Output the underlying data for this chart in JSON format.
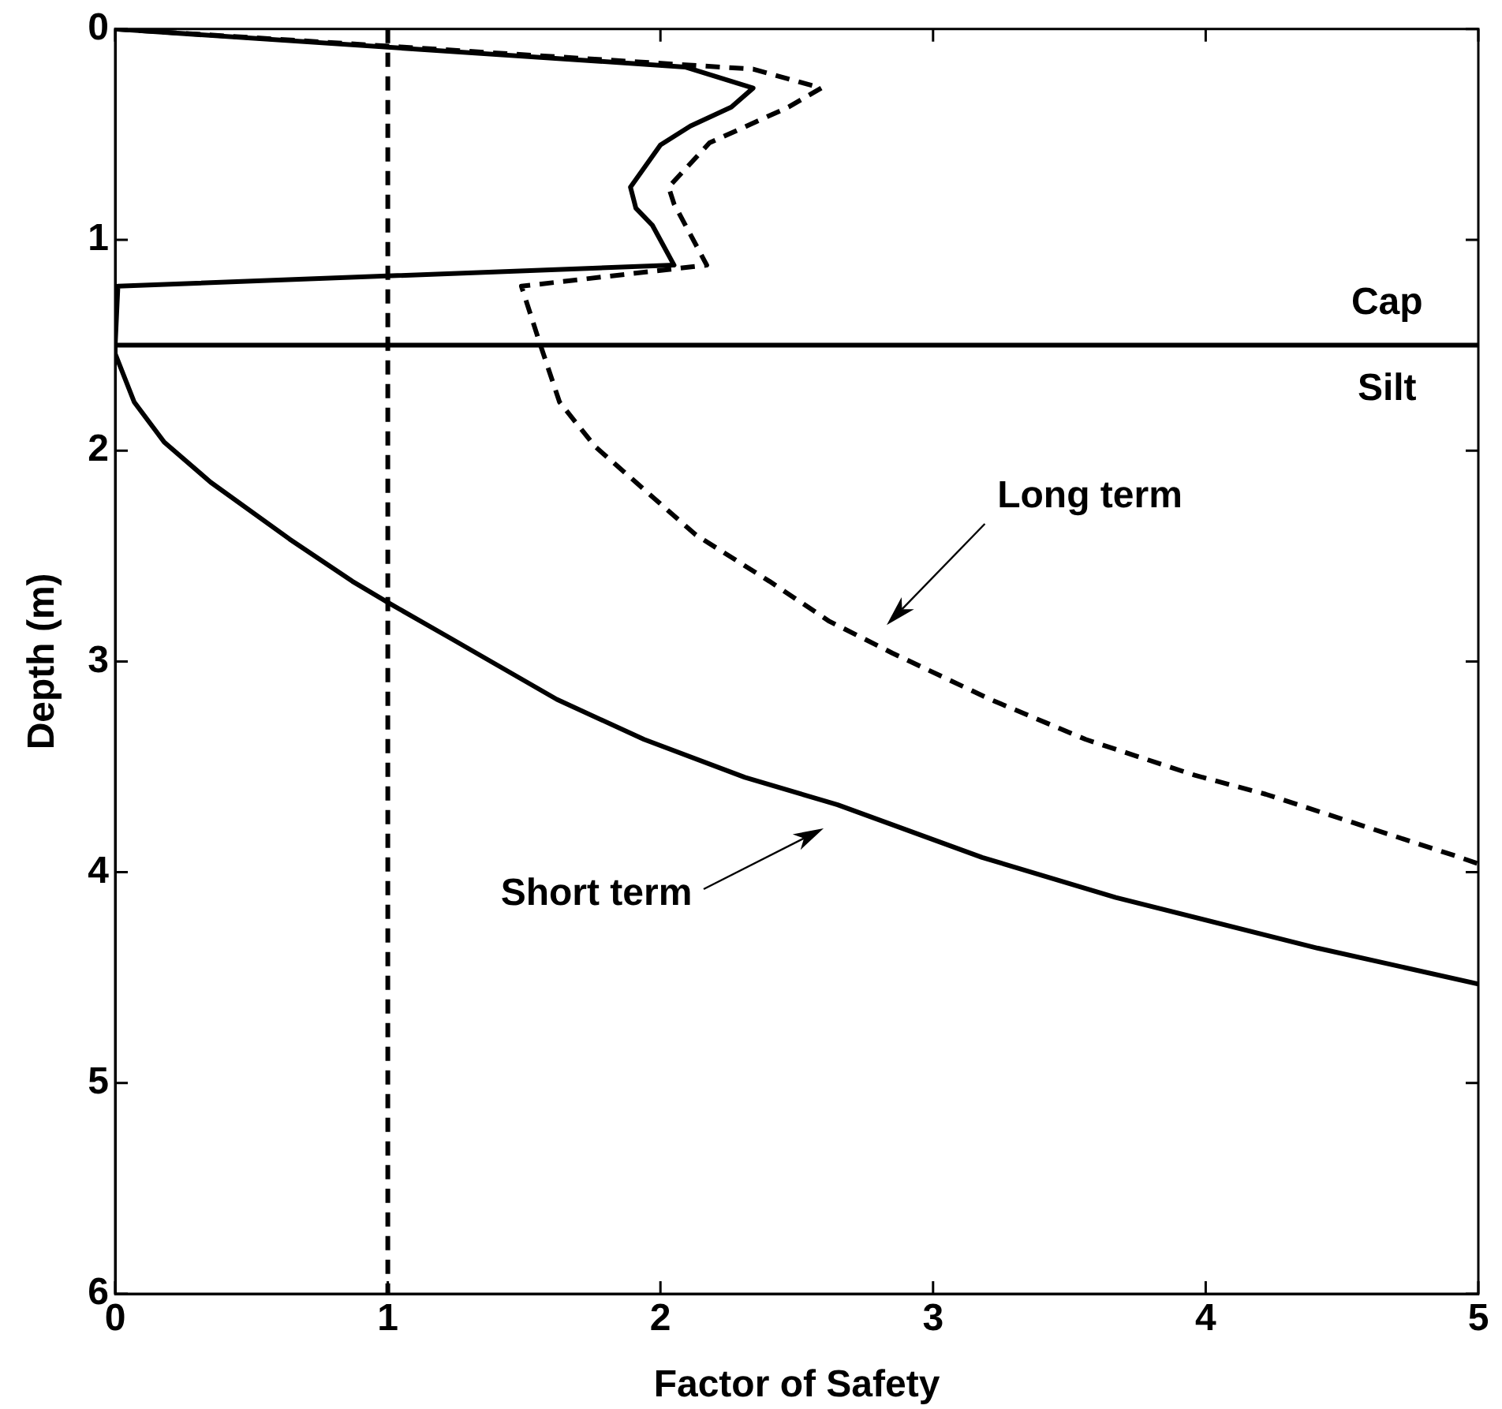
{
  "chart_data": {
    "type": "line",
    "xlabel": "Factor of Safety",
    "ylabel": "Depth (m)",
    "xlim": [
      0,
      5
    ],
    "xticks": [
      0,
      1,
      2,
      3,
      4,
      5
    ],
    "ylim": [
      6,
      0
    ],
    "yticks": [
      0,
      1,
      2,
      3,
      4,
      5,
      6
    ],
    "legend": false,
    "marker": "none",
    "series": [
      {
        "color": "#000000",
        "line_style": "solid",
        "x": [
          0,
          2.09,
          2.34,
          2.26,
          2.11,
          2.0,
          1.89,
          1.91,
          1.97,
          2.05,
          0.01,
          0,
          0,
          0.07,
          0.18,
          0.35,
          0.64,
          0.87,
          1.0,
          1.23,
          1.62,
          1.94,
          2.31,
          2.65,
          3.18,
          3.67,
          4.41,
          5.0
        ],
        "values": [
          0,
          0.18,
          0.28,
          0.37,
          0.46,
          0.55,
          0.75,
          0.85,
          0.93,
          1.12,
          1.22,
          1.5,
          1.54,
          1.77,
          1.96,
          2.15,
          2.42,
          2.62,
          2.72,
          2.89,
          3.18,
          3.37,
          3.55,
          3.68,
          3.93,
          4.12,
          4.36,
          4.53
        ]
      },
      {
        "color": "#000000",
        "line_style": "dashed",
        "x": [
          0,
          2.34,
          2.59,
          2.47,
          2.18,
          2.03,
          2.05,
          2.17,
          1.49,
          1.56,
          1.63,
          1.76,
          2.13,
          2.4,
          2.62,
          2.85,
          3.21,
          3.56,
          3.96,
          4.22,
          4.91,
          5.0
        ],
        "values": [
          0,
          0.19,
          0.28,
          0.37,
          0.54,
          0.75,
          0.83,
          1.12,
          1.22,
          1.5,
          1.77,
          1.98,
          2.4,
          2.62,
          2.81,
          2.96,
          3.18,
          3.37,
          3.54,
          3.63,
          3.92,
          3.96
        ]
      }
    ],
    "ref_lines": [
      {
        "axis": "x",
        "value": 1,
        "line_style": "dashed",
        "color": "#000000"
      },
      {
        "axis": "y",
        "value": 1.5,
        "line_style": "solid",
        "color": "#000000"
      }
    ],
    "annotations": [
      "Cap",
      "Silt",
      "Long term",
      "Short term"
    ]
  }
}
